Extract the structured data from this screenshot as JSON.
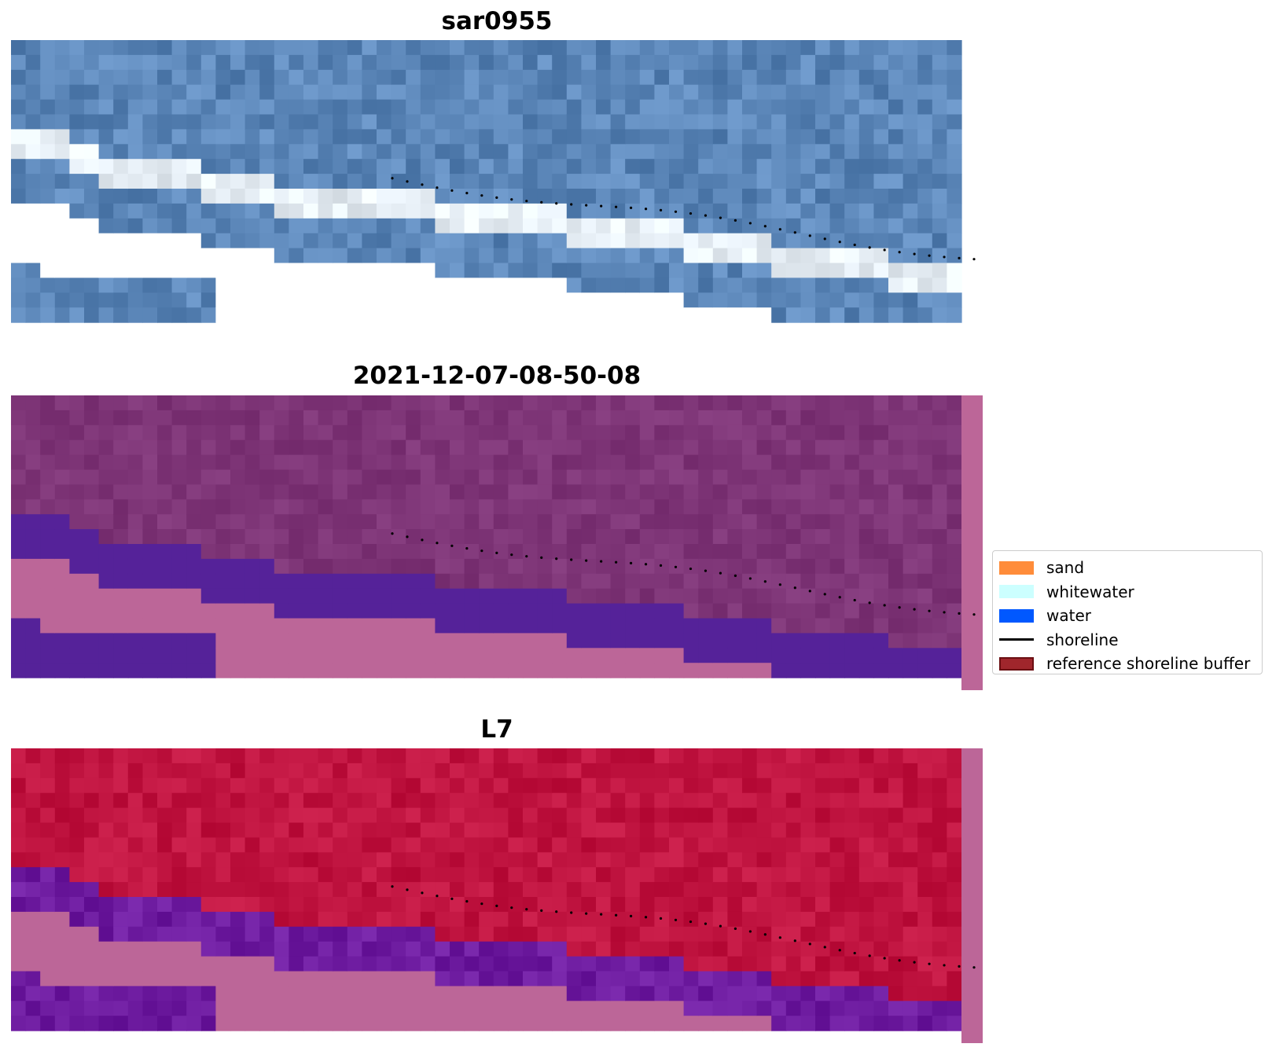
{
  "panels": [
    {
      "title": "sar0955",
      "style": "rgb"
    },
    {
      "title": "2021-12-07-08-50-08",
      "style": "classified"
    },
    {
      "title": "L7",
      "style": "mndwi"
    }
  ],
  "legend": {
    "items": [
      {
        "label": "sand",
        "color": "#ff8c3a",
        "kind": "patch"
      },
      {
        "label": "whitewater",
        "color": "#ccffff",
        "kind": "patch"
      },
      {
        "label": "water",
        "color": "#0058ff",
        "kind": "patch"
      },
      {
        "label": "shoreline",
        "color": "#000000",
        "kind": "line"
      },
      {
        "label": "reference shoreline buffer",
        "color": "#a0262c",
        "kind": "patch-edged",
        "edge": "#6b0e12"
      }
    ]
  },
  "colors": {
    "nodata_pink": "#bc6698",
    "water_class_purple": "#552299",
    "land_magenta": "#7e3577",
    "mndwi_red": "#c01440",
    "mndwi_purple": "#6e1ca0",
    "sea_blue": "#5b86b8",
    "white_surf": "#e6eef5",
    "shoreline_dots": "#000000"
  },
  "grid": {
    "cols": 65,
    "rows": 19
  },
  "boundary_rows_per_col": [
    7,
    7,
    7,
    7,
    8,
    8,
    9,
    9,
    9,
    9,
    9,
    9,
    9,
    10,
    10,
    10,
    10,
    10,
    11,
    11,
    11,
    11,
    11,
    11,
    11,
    11,
    11,
    11,
    11,
    12,
    12,
    12,
    12,
    12,
    12,
    12,
    12,
    12,
    13,
    13,
    13,
    13,
    13,
    13,
    13,
    13,
    14,
    14,
    14,
    14,
    14,
    14,
    15,
    15,
    15,
    15,
    15,
    15,
    15,
    15,
    16,
    16,
    16,
    16,
    16
  ]
}
